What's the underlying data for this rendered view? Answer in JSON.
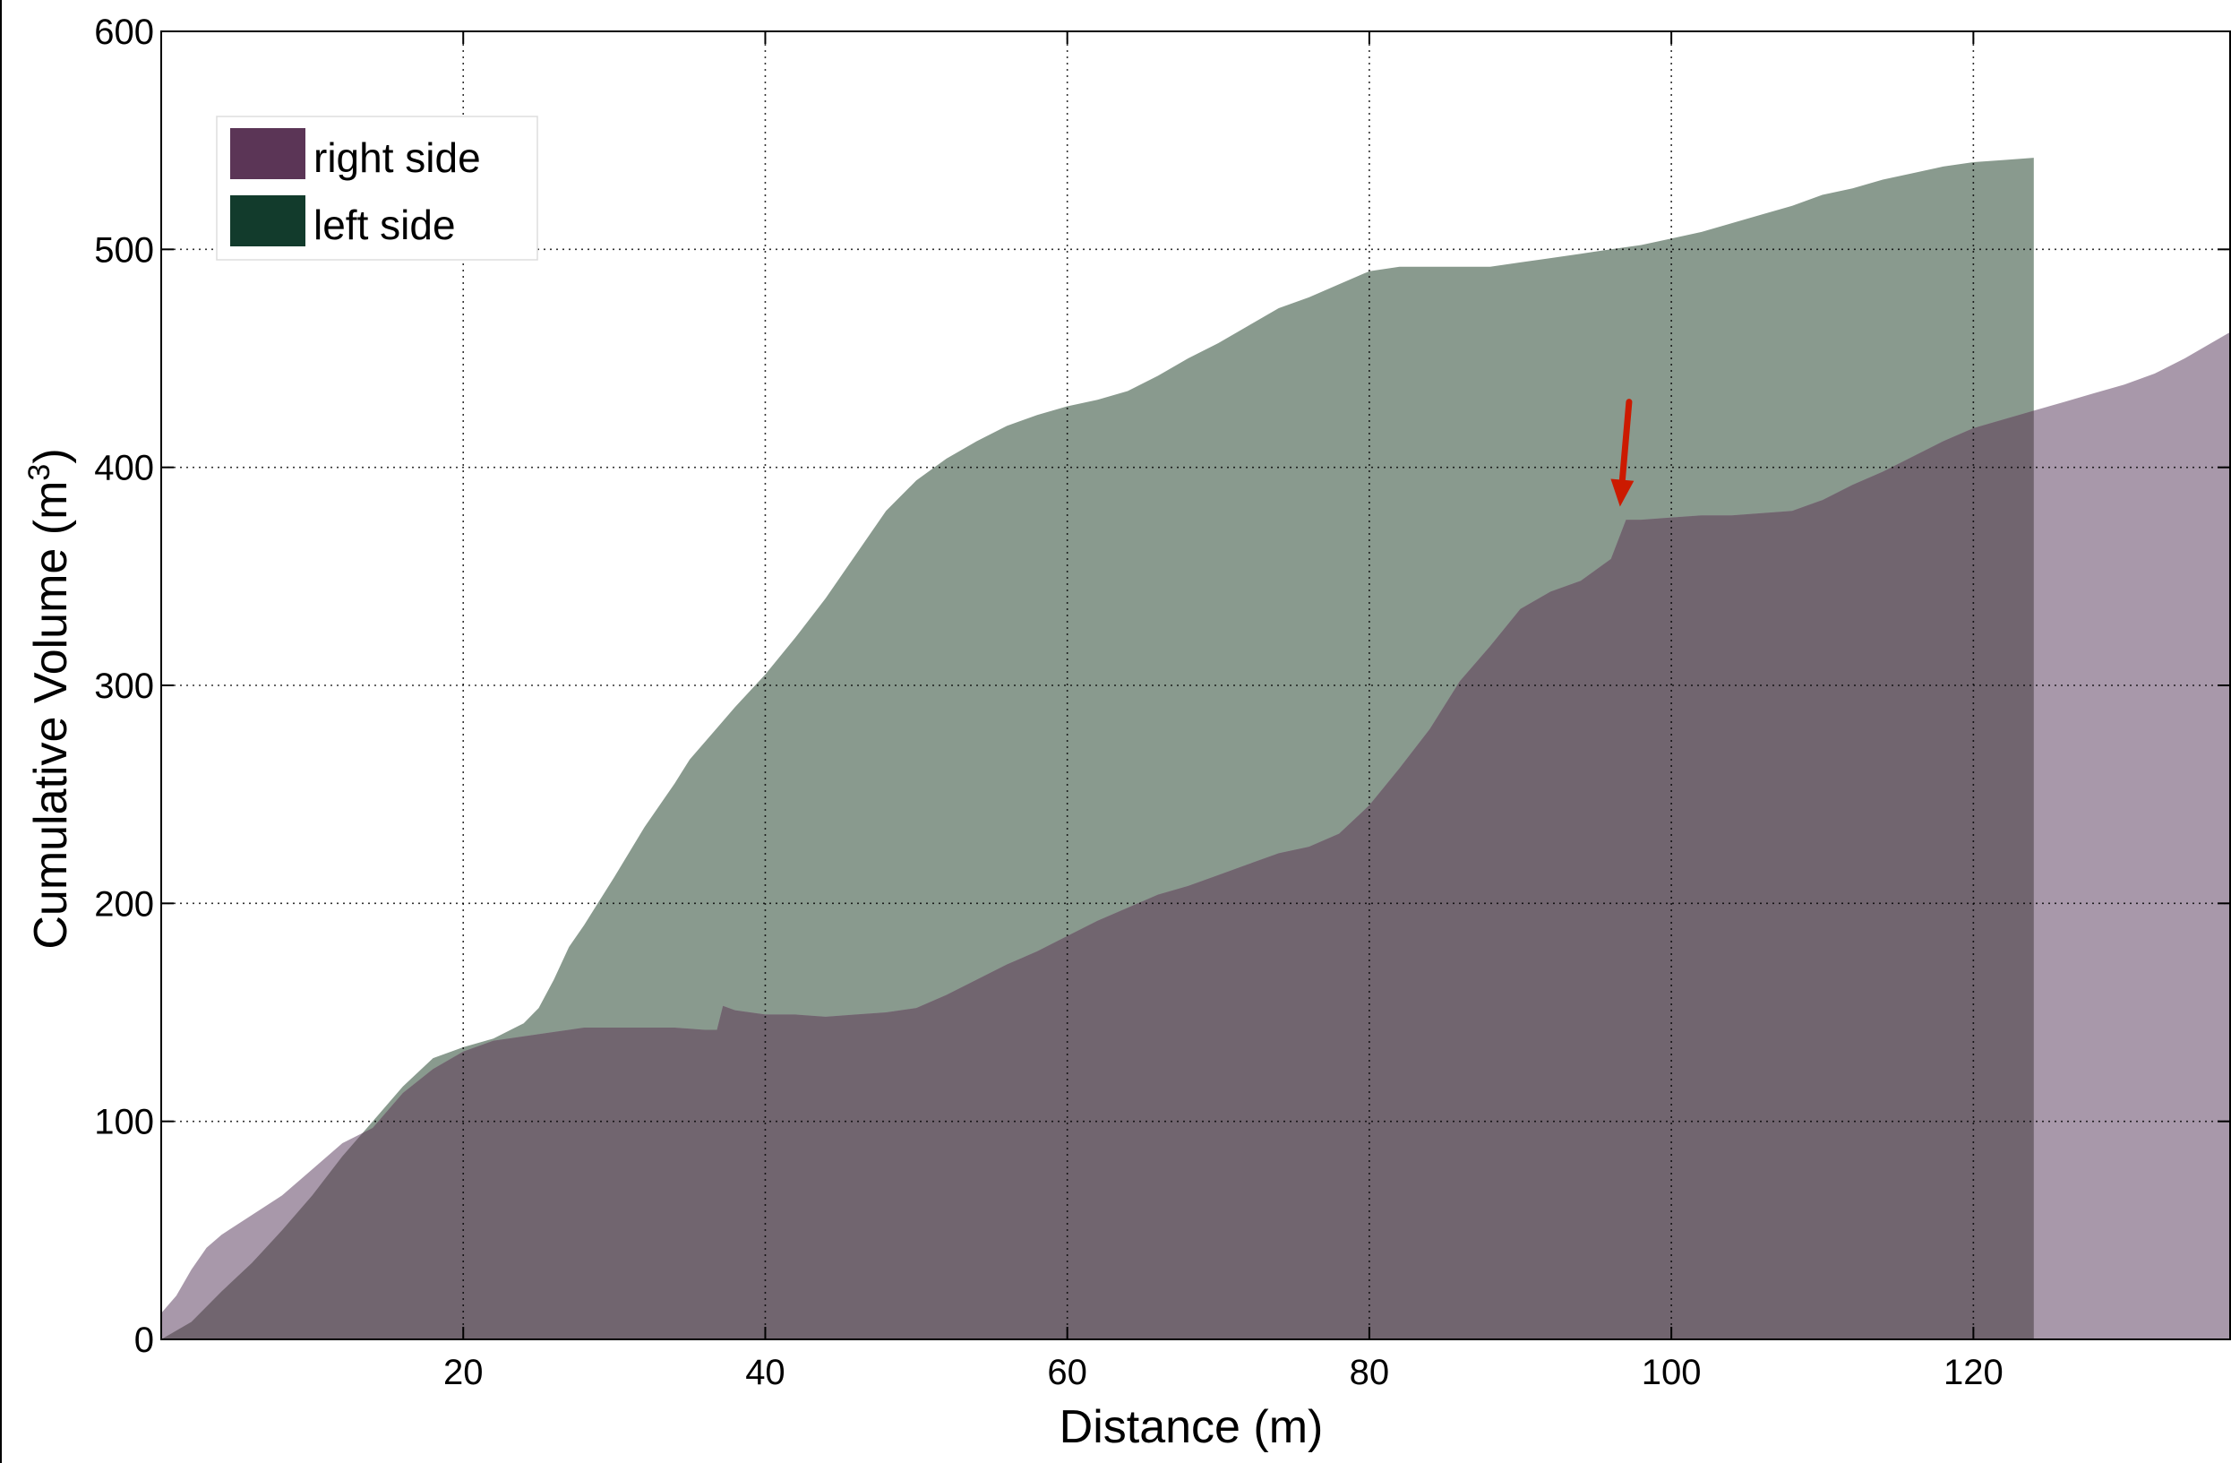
{
  "chart_data": {
    "type": "area",
    "xlabel": "Distance (m)",
    "ylabel": "Cumulative Volume (m",
    "ylabel_sup": "3",
    "ylabel_close": ")",
    "xlim": [
      0,
      137
    ],
    "ylim": [
      0,
      600
    ],
    "xticks": [
      20,
      40,
      60,
      80,
      100,
      120
    ],
    "yticks": [
      0,
      100,
      200,
      300,
      400,
      500,
      600
    ],
    "grid": true,
    "legend": {
      "placement": "top-left",
      "entries": [
        {
          "label": "right side",
          "color": "#5b3556"
        },
        {
          "label": "left side",
          "color": "#123b2c"
        }
      ]
    },
    "series": [
      {
        "name": "left side",
        "fill": "#899a8e",
        "x": [
          0,
          2,
          4,
          6,
          8,
          10,
          12,
          14,
          16,
          18,
          20,
          22,
          24,
          25,
          26,
          27,
          28,
          30,
          32,
          34,
          35,
          36,
          37,
          38,
          40,
          42,
          44,
          46,
          48,
          50,
          52,
          54,
          56,
          58,
          60,
          62,
          64,
          66,
          68,
          70,
          72,
          74,
          76,
          78,
          80,
          82,
          84,
          86,
          88,
          90,
          92,
          94,
          96,
          98,
          100,
          102,
          104,
          106,
          108,
          110,
          112,
          114,
          116,
          118,
          120,
          122,
          124
        ],
        "y": [
          0,
          8,
          22,
          35,
          50,
          66,
          84,
          100,
          116,
          129,
          134,
          138,
          145,
          152,
          165,
          180,
          190,
          212,
          235,
          255,
          266,
          274,
          282,
          290,
          305,
          322,
          340,
          360,
          380,
          394,
          404,
          412,
          419,
          424,
          428,
          431,
          435,
          442,
          450,
          457,
          465,
          473,
          478,
          484,
          490,
          492,
          492,
          492,
          492,
          494,
          496,
          498,
          500,
          502,
          505,
          508,
          512,
          516,
          520,
          525,
          528,
          532,
          535,
          538,
          540,
          541,
          542
        ]
      },
      {
        "name": "right side",
        "fill": "#a898aa",
        "x": [
          0,
          1,
          2,
          3,
          4,
          6,
          8,
          10,
          12,
          14,
          16,
          18,
          20,
          22,
          24,
          26,
          28,
          30,
          32,
          34,
          36,
          36.8,
          37.2,
          38,
          40,
          42,
          44,
          46,
          48,
          50,
          52,
          54,
          56,
          58,
          60,
          62,
          64,
          66,
          68,
          70,
          72,
          74,
          76,
          78,
          80,
          82,
          84,
          86,
          88,
          90,
          92,
          94,
          96,
          97,
          98,
          100,
          102,
          104,
          106,
          108,
          110,
          112,
          114,
          116,
          118,
          120,
          122,
          124,
          126,
          128,
          130,
          132,
          134,
          136,
          137
        ],
        "y": [
          12,
          20,
          32,
          42,
          48,
          57,
          66,
          78,
          90,
          97,
          113,
          124,
          132,
          137,
          139,
          141,
          143,
          143,
          143,
          143,
          142,
          142,
          153,
          151,
          149,
          149,
          148,
          149,
          150,
          152,
          158,
          165,
          172,
          178,
          185,
          192,
          198,
          204,
          208,
          213,
          218,
          223,
          226,
          232,
          245,
          262,
          280,
          302,
          318,
          335,
          343,
          348,
          358,
          376,
          376,
          377,
          378,
          378,
          379,
          380,
          385,
          392,
          398,
          405,
          412,
          418,
          422,
          426,
          430,
          434,
          438,
          443,
          450,
          458,
          462
        ]
      }
    ],
    "overlap_fill": "#71656f",
    "annotation": {
      "type": "arrow",
      "color": "#cc1a00",
      "from": [
        97.2,
        430
      ],
      "to": [
        96.6,
        382
      ]
    }
  }
}
